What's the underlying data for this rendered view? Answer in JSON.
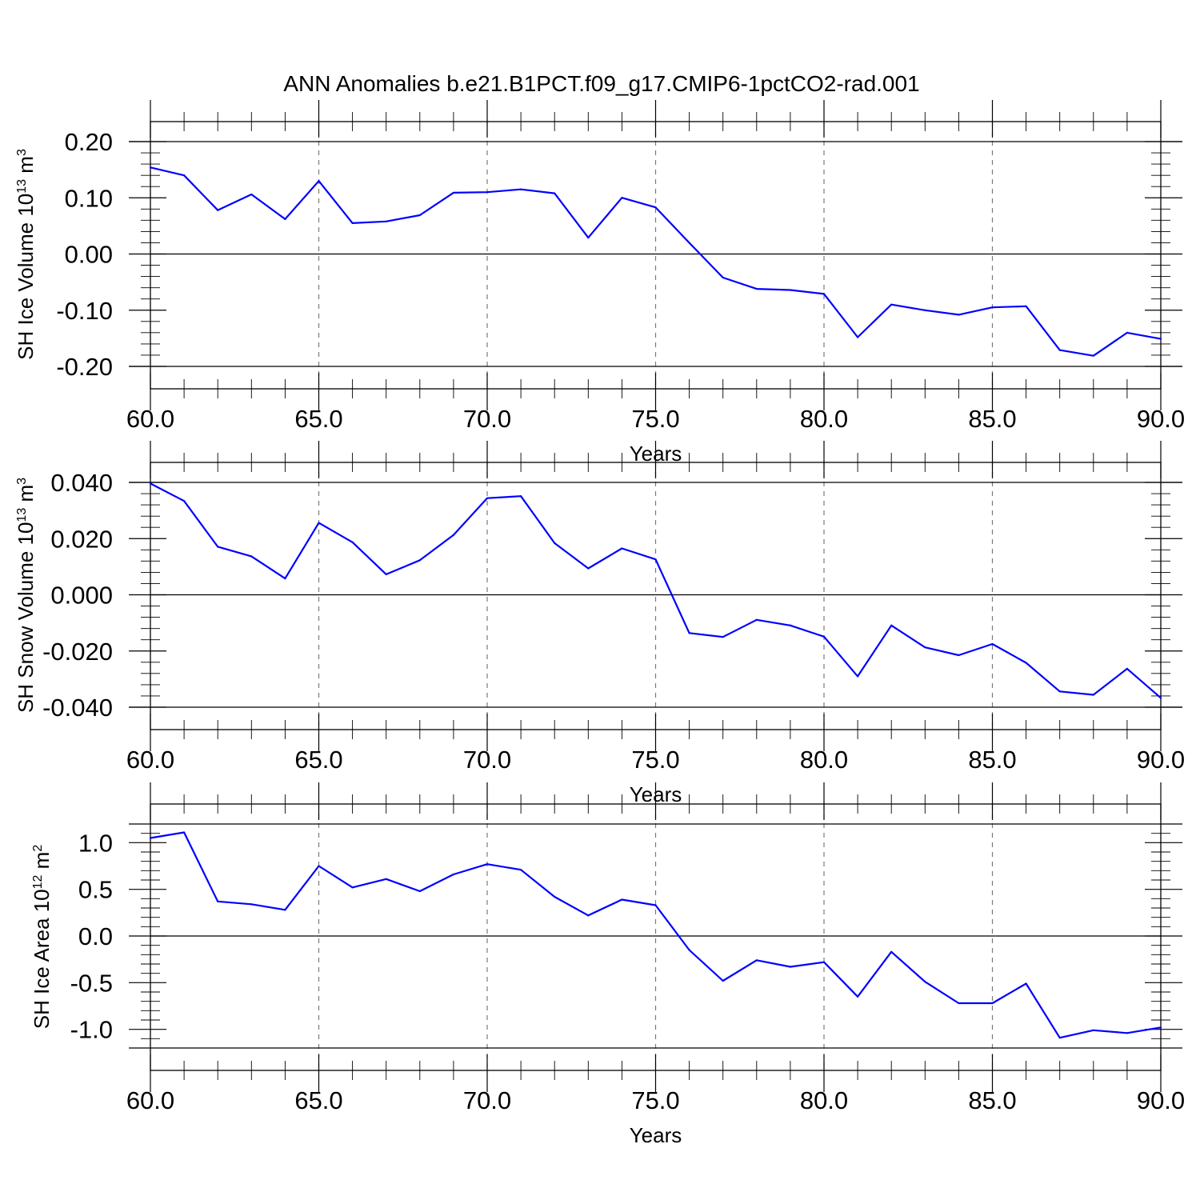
{
  "title": "ANN Anomalies b.e21.B1PCT.f09_g17.CMIP6-1pctCO2-rad.001",
  "colors": {
    "line": "#0000ff",
    "frame": "#000000",
    "grid": "#7a7a7a"
  },
  "chart_data": [
    {
      "type": "line",
      "xlabel": "Years",
      "ylabel": {
        "prefix": "SH Ice Volume 10",
        "exp1": "13",
        "mid": " m",
        "exp2": "3"
      },
      "xlim": [
        60,
        90
      ],
      "ylim": [
        -0.2,
        0.2
      ],
      "xticks": [
        60,
        65,
        70,
        75,
        80,
        85,
        90
      ],
      "xtick_labels": [
        "60.0",
        "65.0",
        "70.0",
        "75.0",
        "80.0",
        "85.0",
        "90.0"
      ],
      "yticks": [
        -0.2,
        -0.1,
        0.0,
        0.1,
        0.2
      ],
      "ytick_labels": [
        "-0.20",
        "-0.10",
        "0.00",
        "0.10",
        "0.20"
      ],
      "grid": "vertical-dashed",
      "x": [
        60,
        61,
        62,
        63,
        64,
        65,
        66,
        67,
        68,
        69,
        70,
        71,
        72,
        73,
        74,
        75,
        76,
        77,
        78,
        79,
        80,
        81,
        82,
        83,
        84,
        85,
        86,
        87,
        88,
        89,
        90
      ],
      "values": [
        0.154,
        0.14,
        0.078,
        0.106,
        0.062,
        0.13,
        0.055,
        0.058,
        0.069,
        0.109,
        0.11,
        0.115,
        0.108,
        0.029,
        0.1,
        0.083,
        0.02,
        -0.042,
        -0.062,
        -0.064,
        -0.071,
        -0.148,
        -0.09,
        -0.1,
        -0.108,
        -0.095,
        -0.093,
        -0.171,
        -0.181,
        -0.14,
        -0.151
      ]
    },
    {
      "type": "line",
      "xlabel": "Years",
      "ylabel": {
        "prefix": "SH Snow Volume 10",
        "exp1": "13",
        "mid": " m",
        "exp2": "3"
      },
      "xlim": [
        60,
        90
      ],
      "ylim": [
        -0.04,
        0.04
      ],
      "xticks": [
        60,
        65,
        70,
        75,
        80,
        85,
        90
      ],
      "xtick_labels": [
        "60.0",
        "65.0",
        "70.0",
        "75.0",
        "80.0",
        "85.0",
        "90.0"
      ],
      "yticks": [
        -0.04,
        -0.02,
        0.0,
        0.02,
        0.04
      ],
      "ytick_labels": [
        "-0.040",
        "-0.020",
        "0.000",
        "0.020",
        "0.040"
      ],
      "grid": "vertical-dashed",
      "x": [
        60,
        61,
        62,
        63,
        64,
        65,
        66,
        67,
        68,
        69,
        70,
        71,
        72,
        73,
        74,
        75,
        76,
        77,
        78,
        79,
        80,
        81,
        82,
        83,
        84,
        85,
        86,
        87,
        88,
        89,
        90
      ],
      "values": [
        0.0396,
        0.0334,
        0.0171,
        0.0137,
        0.0058,
        0.0256,
        0.0187,
        0.0073,
        0.0123,
        0.0213,
        0.0344,
        0.0351,
        0.0184,
        0.0094,
        0.0165,
        0.0126,
        -0.0136,
        -0.015,
        -0.0089,
        -0.0109,
        -0.0149,
        -0.029,
        -0.0109,
        -0.0187,
        -0.0215,
        -0.0175,
        -0.0242,
        -0.0344,
        -0.0356,
        -0.0263,
        -0.0367
      ]
    },
    {
      "type": "line",
      "xlabel": "Years",
      "ylabel": {
        "prefix": "SH Ice Area 10",
        "exp1": "12",
        "mid": " m",
        "exp2": "2"
      },
      "xlim": [
        60,
        90
      ],
      "ylim": [
        -1.2,
        1.2
      ],
      "xticks": [
        60,
        65,
        70,
        75,
        80,
        85,
        90
      ],
      "xtick_labels": [
        "60.0",
        "65.0",
        "70.0",
        "75.0",
        "80.0",
        "85.0",
        "90.0"
      ],
      "yticks": [
        -1.0,
        -0.5,
        0.0,
        0.5,
        1.0
      ],
      "ytick_labels": [
        "-1.0",
        "-0.5",
        "0.0",
        "0.5",
        "1.0"
      ],
      "grid": "vertical-dashed",
      "x": [
        60,
        61,
        62,
        63,
        64,
        65,
        66,
        67,
        68,
        69,
        70,
        71,
        72,
        73,
        74,
        75,
        76,
        77,
        78,
        79,
        80,
        81,
        82,
        83,
        84,
        85,
        86,
        87,
        88,
        89,
        90
      ],
      "values": [
        1.05,
        1.11,
        0.37,
        0.34,
        0.28,
        0.75,
        0.52,
        0.61,
        0.48,
        0.66,
        0.77,
        0.71,
        0.42,
        0.22,
        0.39,
        0.33,
        -0.15,
        -0.48,
        -0.26,
        -0.33,
        -0.28,
        -0.65,
        -0.17,
        -0.49,
        -0.72,
        -0.72,
        -0.51,
        -1.09,
        -1.01,
        -1.04,
        -0.98
      ]
    }
  ]
}
